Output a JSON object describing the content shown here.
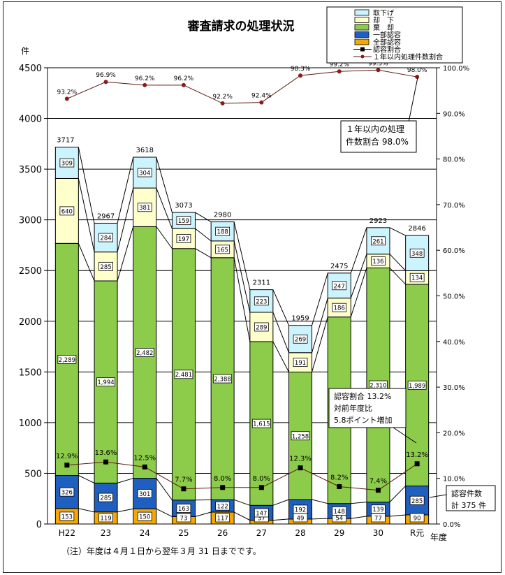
{
  "chart_data": {
    "type": "bar",
    "title": "審査請求の処理状況",
    "left_axis_unit": "件",
    "x_axis_unit": "年度",
    "categories": [
      "H22",
      "23",
      "24",
      "25",
      "26",
      "27",
      "28",
      "29",
      "30",
      "R元"
    ],
    "ylim": [
      0,
      4500
    ],
    "yticks": [
      0,
      500,
      1000,
      1500,
      2000,
      2500,
      3000,
      3500,
      4000,
      4500
    ],
    "ylim_right": [
      0,
      100
    ],
    "yticks_right": [
      "0.0%",
      "10.0%",
      "20.0%",
      "30.0%",
      "40.0%",
      "50.0%",
      "60.0%",
      "70.0%",
      "80.0%",
      "90.0%",
      "100.0%"
    ],
    "series": [
      {
        "name": "全部認容",
        "color": "#f5a800",
        "values": [
          153,
          119,
          150,
          73,
          117,
          37,
          49,
          54,
          77,
          90
        ]
      },
      {
        "name": "一部認容",
        "color": "#1f5fbf",
        "values": [
          326,
          285,
          301,
          163,
          122,
          147,
          192,
          148,
          139,
          285
        ]
      },
      {
        "name": "棄　却",
        "color": "#8ccc4a",
        "values": [
          2289,
          1994,
          2482,
          2481,
          2388,
          1615,
          1258,
          1840,
          2310,
          1989
        ]
      },
      {
        "name": "却　下",
        "color": "#ffffcc",
        "values": [
          640,
          285,
          381,
          197,
          165,
          289,
          191,
          186,
          136,
          134
        ]
      },
      {
        "name": "取下げ",
        "color": "#ccf4ff",
        "values": [
          309,
          284,
          304,
          159,
          188,
          223,
          269,
          247,
          261,
          348
        ]
      }
    ],
    "totals": [
      3717,
      2967,
      3618,
      3073,
      2980,
      2311,
      1959,
      2475,
      2923,
      2846
    ],
    "line_series": [
      {
        "name": "認容割合",
        "axis": "right",
        "values": [
          12.9,
          13.6,
          12.5,
          7.7,
          8.0,
          8.0,
          12.3,
          8.2,
          7.4,
          13.2
        ],
        "labels": [
          "12.9%",
          "13.6%",
          "12.5%",
          "7.7%",
          "8.0%",
          "8.0%",
          "12.3%",
          "8.2%",
          "7.4%",
          "13.2%"
        ]
      },
      {
        "name": "１年以内処理件数割合",
        "axis": "right",
        "values": [
          93.2,
          96.9,
          96.2,
          96.2,
          92.2,
          92.4,
          98.3,
          99.2,
          99.5,
          98.0
        ],
        "labels": [
          "93.2%",
          "96.9%",
          "96.2%",
          "96.2%",
          "92.2%",
          "92.4%",
          "98.3%",
          "99.2%",
          "99.5%",
          "98.0%"
        ]
      }
    ],
    "legend_position": "top-right",
    "legend": [
      "取下げ",
      "却　下",
      "棄　却",
      "一部認容",
      "全部認容",
      "認容割合",
      "１年以内処理件数割合"
    ],
    "annotations": [
      {
        "lines": [
          "１年以内の処理",
          "件数割合 98.0%"
        ],
        "target": "R元"
      },
      {
        "lines": [
          "認容割合 13.2%",
          "対前年度比",
          "5.8ポイント増加"
        ],
        "target": "R元"
      },
      {
        "lines": [
          "認容件数",
          "計 375 件"
        ],
        "target": "R元"
      }
    ]
  },
  "footnote": "（注）年度は４月１日から翌年３月 31 日までです。"
}
